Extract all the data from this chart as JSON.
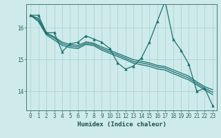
{
  "xlabel": "Humidex (Indice chaleur)",
  "bg_color": "#ceeaea",
  "grid_color": "#a8d0d0",
  "line_color": "#1a7070",
  "xlim": [
    -0.5,
    23.5
  ],
  "ylim": [
    13.4,
    16.75
  ],
  "yticks": [
    14,
    15,
    16
  ],
  "xticks": [
    0,
    1,
    2,
    3,
    4,
    5,
    6,
    7,
    8,
    9,
    10,
    11,
    12,
    13,
    14,
    15,
    16,
    17,
    18,
    19,
    20,
    21,
    22,
    23
  ],
  "series_lines": [
    {
      "x": [
        0,
        1,
        2,
        3,
        4,
        5,
        6,
        7,
        8,
        9,
        10,
        11,
        12,
        13,
        14,
        15,
        16,
        17,
        18,
        19,
        20,
        21,
        22,
        23
      ],
      "y": [
        16.4,
        16.4,
        15.85,
        15.85,
        15.25,
        15.5,
        15.55,
        15.75,
        15.65,
        15.55,
        15.35,
        14.9,
        14.7,
        14.8,
        15.05,
        15.55,
        16.2,
        16.85,
        15.65,
        15.3,
        14.85,
        14.0,
        14.1,
        13.55
      ],
      "marker": "^",
      "lw": 0.9
    },
    {
      "x": [
        0,
        1,
        2,
        3,
        4,
        5,
        6,
        7,
        8,
        9,
        10,
        11,
        12,
        13,
        14,
        15,
        16,
        17,
        18,
        19,
        20,
        21,
        22,
        23
      ],
      "y": [
        16.4,
        16.3,
        15.85,
        15.72,
        15.55,
        15.48,
        15.45,
        15.56,
        15.52,
        15.4,
        15.3,
        15.2,
        15.1,
        15.0,
        14.95,
        14.9,
        14.82,
        14.78,
        14.68,
        14.58,
        14.48,
        14.3,
        14.15,
        14.05
      ],
      "marker": null,
      "lw": 0.9
    },
    {
      "x": [
        0,
        1,
        2,
        3,
        4,
        5,
        6,
        7,
        8,
        9,
        10,
        11,
        12,
        13,
        14,
        15,
        16,
        17,
        18,
        19,
        20,
        21,
        22,
        23
      ],
      "y": [
        16.4,
        16.25,
        15.82,
        15.68,
        15.5,
        15.43,
        15.4,
        15.52,
        15.48,
        15.35,
        15.25,
        15.15,
        15.05,
        14.94,
        14.9,
        14.85,
        14.77,
        14.73,
        14.62,
        14.52,
        14.42,
        14.25,
        14.1,
        13.97
      ],
      "marker": null,
      "lw": 0.9
    },
    {
      "x": [
        0,
        1,
        2,
        3,
        4,
        5,
        6,
        7,
        8,
        9,
        10,
        11,
        12,
        13,
        14,
        15,
        16,
        17,
        18,
        19,
        20,
        21,
        22,
        23
      ],
      "y": [
        16.4,
        16.2,
        15.78,
        15.62,
        15.45,
        15.38,
        15.35,
        15.48,
        15.44,
        15.3,
        15.2,
        15.1,
        15.0,
        14.89,
        14.84,
        14.79,
        14.71,
        14.67,
        14.56,
        14.46,
        14.36,
        14.2,
        14.05,
        13.9
      ],
      "marker": null,
      "lw": 0.9
    }
  ]
}
